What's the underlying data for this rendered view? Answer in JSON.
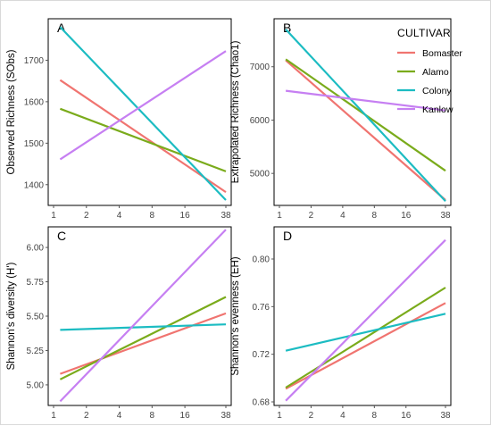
{
  "legend": {
    "title": "CULTIVAR",
    "placement": "top-right"
  },
  "colors": {
    "Bomaster": "#f07470",
    "Alamo": "#7aab1b",
    "Colony": "#1cbcc2",
    "Kanlow": "#c67ff2"
  },
  "chart_data": [
    {
      "type": "line",
      "panel": "A",
      "xlabel": "",
      "ylabel": "Observed Richness (SObs)",
      "x_scale": "log",
      "x_ticks": [
        1,
        2,
        4,
        8,
        16,
        38
      ],
      "xlim": [
        1,
        38
      ],
      "y_ticks": [
        1400,
        1500,
        1600,
        1700
      ],
      "ylim": [
        1350,
        1800
      ],
      "grid": false,
      "series": [
        {
          "name": "Bomaster",
          "x": [
            1.15,
            38
          ],
          "y": [
            1652,
            1382
          ]
        },
        {
          "name": "Alamo",
          "x": [
            1.15,
            38
          ],
          "y": [
            1583,
            1432
          ]
        },
        {
          "name": "Colony",
          "x": [
            1.15,
            38
          ],
          "y": [
            1780,
            1363
          ]
        },
        {
          "name": "Kanlow",
          "x": [
            1.15,
            38
          ],
          "y": [
            1461,
            1722
          ]
        }
      ]
    },
    {
      "type": "line",
      "panel": "B",
      "xlabel": "",
      "ylabel": "Extrapolated Richness (Chao1)",
      "x_scale": "log",
      "x_ticks": [
        1,
        2,
        4,
        8,
        16,
        38
      ],
      "xlim": [
        1,
        38
      ],
      "y_ticks": [
        5000,
        6000,
        7000
      ],
      "ylim": [
        4400,
        7900
      ],
      "grid": false,
      "series": [
        {
          "name": "Bomaster",
          "x": [
            1.15,
            38
          ],
          "y": [
            7120,
            4500
          ]
        },
        {
          "name": "Alamo",
          "x": [
            1.15,
            38
          ],
          "y": [
            7140,
            5050
          ]
        },
        {
          "name": "Colony",
          "x": [
            1.15,
            38
          ],
          "y": [
            7700,
            4480
          ]
        },
        {
          "name": "Kanlow",
          "x": [
            1.15,
            38
          ],
          "y": [
            6550,
            6180
          ]
        }
      ]
    },
    {
      "type": "line",
      "panel": "C",
      "xlabel": "",
      "ylabel": "Shannon's diversity (H')",
      "x_scale": "log",
      "x_ticks": [
        1,
        2,
        4,
        8,
        16,
        38
      ],
      "xlim": [
        1,
        38
      ],
      "y_ticks": [
        "5.00",
        "5.25",
        "5.50",
        "5.75",
        "6.00"
      ],
      "ylim": [
        4.85,
        6.15
      ],
      "grid": false,
      "series": [
        {
          "name": "Bomaster",
          "x": [
            1.15,
            38
          ],
          "y": [
            5.08,
            5.52
          ]
        },
        {
          "name": "Alamo",
          "x": [
            1.15,
            38
          ],
          "y": [
            5.04,
            5.64
          ]
        },
        {
          "name": "Colony",
          "x": [
            1.15,
            38
          ],
          "y": [
            5.4,
            5.44
          ]
        },
        {
          "name": "Kanlow",
          "x": [
            1.15,
            38
          ],
          "y": [
            4.88,
            6.13
          ]
        }
      ]
    },
    {
      "type": "line",
      "panel": "D",
      "xlabel": "",
      "ylabel": "Shannon's evenness (EH)",
      "x_scale": "log",
      "x_ticks": [
        1,
        2,
        4,
        8,
        16,
        38
      ],
      "xlim": [
        1,
        38
      ],
      "y_ticks": [
        "0.68",
        "0.72",
        "0.76",
        "0.80"
      ],
      "ylim": [
        0.677,
        0.827
      ],
      "grid": false,
      "series": [
        {
          "name": "Bomaster",
          "x": [
            1.15,
            38
          ],
          "y": [
            0.691,
            0.763
          ]
        },
        {
          "name": "Alamo",
          "x": [
            1.15,
            38
          ],
          "y": [
            0.692,
            0.776
          ]
        },
        {
          "name": "Colony",
          "x": [
            1.15,
            38
          ],
          "y": [
            0.723,
            0.754
          ]
        },
        {
          "name": "Kanlow",
          "x": [
            1.15,
            38
          ],
          "y": [
            0.681,
            0.816
          ]
        }
      ]
    }
  ]
}
